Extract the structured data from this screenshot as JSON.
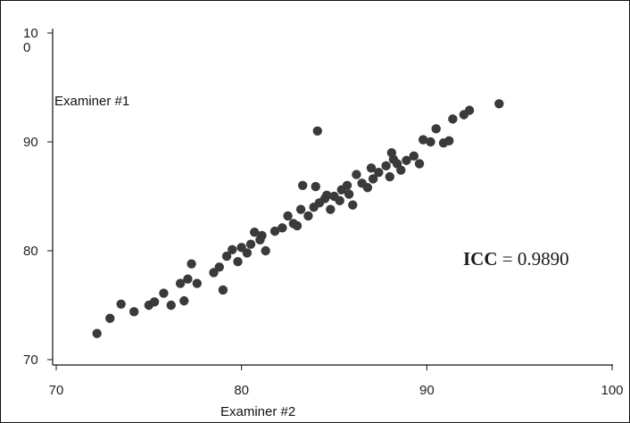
{
  "chart_data": {
    "type": "scatter",
    "title": "",
    "xlabel": "Examiner #2",
    "ylabel": "Examiner #1",
    "xlim": [
      70,
      100
    ],
    "ylim": [
      70,
      100
    ],
    "x_ticks": [
      "70",
      "80",
      "90",
      "100"
    ],
    "y_ticks": [
      "70",
      "80",
      "90",
      "10\n0"
    ],
    "grid": false,
    "point_color": "#3a3a3a",
    "annotation": {
      "label": "ICC",
      "equals": "=",
      "value": "0.9890"
    },
    "points": [
      [
        72.2,
        72.4
      ],
      [
        72.9,
        73.8
      ],
      [
        73.5,
        75.1
      ],
      [
        74.2,
        74.4
      ],
      [
        75.0,
        75.0
      ],
      [
        75.3,
        75.3
      ],
      [
        75.8,
        76.1
      ],
      [
        76.2,
        75.0
      ],
      [
        76.7,
        77.0
      ],
      [
        76.9,
        75.4
      ],
      [
        77.1,
        77.4
      ],
      [
        77.3,
        78.8
      ],
      [
        77.6,
        77.0
      ],
      [
        78.5,
        78.0
      ],
      [
        78.8,
        78.5
      ],
      [
        79.0,
        76.4
      ],
      [
        79.2,
        79.5
      ],
      [
        79.5,
        80.1
      ],
      [
        79.8,
        79.0
      ],
      [
        80.0,
        80.3
      ],
      [
        80.3,
        79.8
      ],
      [
        80.5,
        80.6
      ],
      [
        80.7,
        81.7
      ],
      [
        81.0,
        81.0
      ],
      [
        81.1,
        81.4
      ],
      [
        81.3,
        80.0
      ],
      [
        81.8,
        81.8
      ],
      [
        82.2,
        82.1
      ],
      [
        82.5,
        83.2
      ],
      [
        82.8,
        82.5
      ],
      [
        83.0,
        82.3
      ],
      [
        83.2,
        83.8
      ],
      [
        83.3,
        86.0
      ],
      [
        83.6,
        83.2
      ],
      [
        83.9,
        84.0
      ],
      [
        84.0,
        85.9
      ],
      [
        84.2,
        84.4
      ],
      [
        84.5,
        84.8
      ],
      [
        84.6,
        85.1
      ],
      [
        84.8,
        83.8
      ],
      [
        85.0,
        85.0
      ],
      [
        85.3,
        84.6
      ],
      [
        84.1,
        91.0
      ],
      [
        85.4,
        85.6
      ],
      [
        85.7,
        86.0
      ],
      [
        85.8,
        85.2
      ],
      [
        86.0,
        84.2
      ],
      [
        86.2,
        87.0
      ],
      [
        86.5,
        86.2
      ],
      [
        86.8,
        85.8
      ],
      [
        87.1,
        86.6
      ],
      [
        87.0,
        87.6
      ],
      [
        87.4,
        87.2
      ],
      [
        87.8,
        87.8
      ],
      [
        88.0,
        86.8
      ],
      [
        88.2,
        88.4
      ],
      [
        88.4,
        88.0
      ],
      [
        88.6,
        87.4
      ],
      [
        88.1,
        89.0
      ],
      [
        88.9,
        88.3
      ],
      [
        89.3,
        88.7
      ],
      [
        89.6,
        88.0
      ],
      [
        89.8,
        90.2
      ],
      [
        90.2,
        90.0
      ],
      [
        90.5,
        91.2
      ],
      [
        90.9,
        89.9
      ],
      [
        91.2,
        90.1
      ],
      [
        91.4,
        92.1
      ],
      [
        92.0,
        92.5
      ],
      [
        92.3,
        92.9
      ],
      [
        93.9,
        93.5
      ]
    ]
  }
}
